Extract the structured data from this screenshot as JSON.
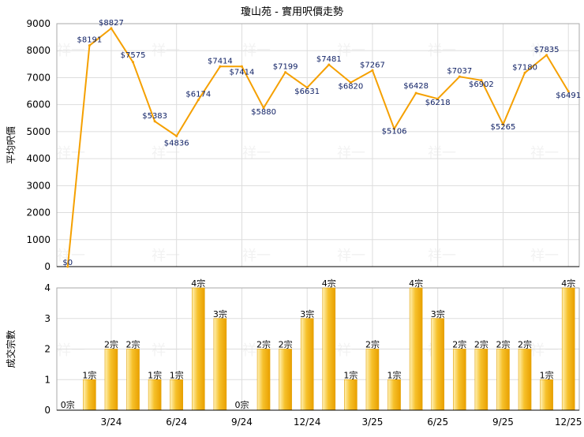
{
  "title": "瓊山苑 - 實用呎價走勢",
  "watermark": "祥一",
  "colors": {
    "line": "#f5a000",
    "bar_light": "#fff2b8",
    "bar_mid": "#f6c12b",
    "bar_dark": "#e9a000",
    "grid": "#dddddd",
    "axis": "#000000",
    "price_label": "#112266",
    "count_label": "#000000"
  },
  "chart_data": [
    {
      "type": "line",
      "title": "瓊山苑 - 實用呎價走勢",
      "ylabel": "平均呎價",
      "ylim": [
        0,
        9000
      ],
      "yticks": [
        0,
        1000,
        2000,
        3000,
        4000,
        5000,
        6000,
        7000,
        8000,
        9000
      ],
      "grid": true,
      "x": [
        "1/24",
        "2/24",
        "3/24",
        "4/24",
        "5/24",
        "6/24",
        "7/24",
        "8/24",
        "9/24",
        "10/24",
        "11/24",
        "12/24",
        "1/25",
        "2/25",
        "3/25",
        "4/25",
        "5/25",
        "6/25",
        "7/25",
        "8/25",
        "9/25",
        "10/25",
        "11/25",
        "12/25"
      ],
      "values": [
        0,
        8191,
        8827,
        7575,
        5383,
        4836,
        6174,
        7414,
        7414,
        5880,
        7199,
        6631,
        7481,
        6820,
        7267,
        5106,
        6428,
        6218,
        7037,
        6902,
        5265,
        7180,
        7835,
        6491
      ],
      "labels": [
        "$0",
        "$8191",
        "$8827",
        "$7575",
        "$5383",
        "$4836",
        "$6174",
        "$7414",
        "$7414",
        "$5880",
        "$7199",
        "$6631",
        "$7481",
        "$6820",
        "$7267",
        "$5106",
        "$6428",
        "$6218",
        "$7037",
        "$6902",
        "$5265",
        "$7180",
        "$7835",
        "$6491"
      ]
    },
    {
      "type": "bar",
      "ylabel": "成交宗數",
      "ylim": [
        0,
        4
      ],
      "yticks": [
        0,
        1,
        2,
        3,
        4
      ],
      "grid": true,
      "categories": [
        "1/24",
        "2/24",
        "3/24",
        "4/24",
        "5/24",
        "6/24",
        "7/24",
        "8/24",
        "9/24",
        "10/24",
        "11/24",
        "12/24",
        "1/25",
        "2/25",
        "3/25",
        "4/25",
        "5/25",
        "6/25",
        "7/25",
        "8/25",
        "9/25",
        "10/25",
        "11/25",
        "12/25"
      ],
      "values": [
        0,
        1,
        2,
        2,
        1,
        1,
        4,
        3,
        0,
        2,
        2,
        3,
        4,
        1,
        2,
        1,
        4,
        3,
        2,
        2,
        2,
        2,
        1,
        4
      ],
      "labels": [
        "0宗",
        "1宗",
        "2宗",
        "2宗",
        "1宗",
        "1宗",
        "4宗",
        "3宗",
        "0宗",
        "2宗",
        "2宗",
        "3宗",
        "4宗",
        "1宗",
        "2宗",
        "1宗",
        "4宗",
        "3宗",
        "2宗",
        "2宗",
        "2宗",
        "2宗",
        "1宗",
        "4宗"
      ],
      "xtick_labels": [
        "3/24",
        "6/24",
        "9/24",
        "12/24",
        "3/25",
        "6/25",
        "9/25",
        "12/25"
      ],
      "xtick_index": [
        2,
        5,
        8,
        11,
        14,
        17,
        20,
        23
      ]
    }
  ]
}
